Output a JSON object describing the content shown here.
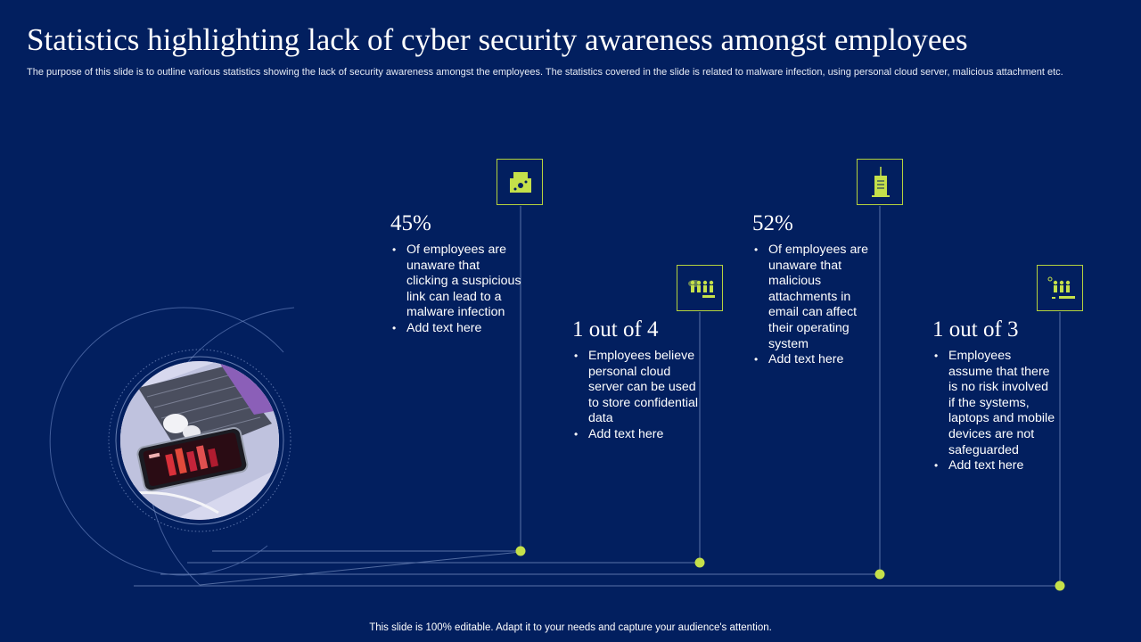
{
  "title": "Statistics highlighting lack of cyber security awareness amongst employees",
  "subtitle": "The purpose of this slide is to outline various statistics showing the lack of security awareness amongst the employees. The statistics covered in the slide is related to malware infection, using personal cloud server, malicious attachment etc.",
  "footer": "This slide is 100% editable. Adapt it to your needs and capture your audience's attention.",
  "colors": {
    "background": "#021f5f",
    "accent": "#b5d33d",
    "line": "#5a73a8"
  },
  "stats": [
    {
      "value": "45%",
      "icon": "malware-file-icon",
      "bullets": [
        "Of employees are unaware that clicking a suspicious link can lead to a malware infection",
        "Add text here"
      ]
    },
    {
      "value": "1 out of 4",
      "icon": "cloud-users-icon",
      "bullets": [
        "Employees believe personal cloud server can be used to store confidential data",
        "Add text here"
      ]
    },
    {
      "value": "52%",
      "icon": "email-attachment-icon",
      "bullets": [
        "Of employees are unaware that malicious attachments in email can affect their operating system",
        "Add text here"
      ]
    },
    {
      "value": "1 out of 3",
      "icon": "unsecured-devices-icon",
      "bullets": [
        "Employees assume that there is no risk involved if the systems, laptops and mobile devices are not safeguarded",
        "Add text here"
      ]
    }
  ]
}
